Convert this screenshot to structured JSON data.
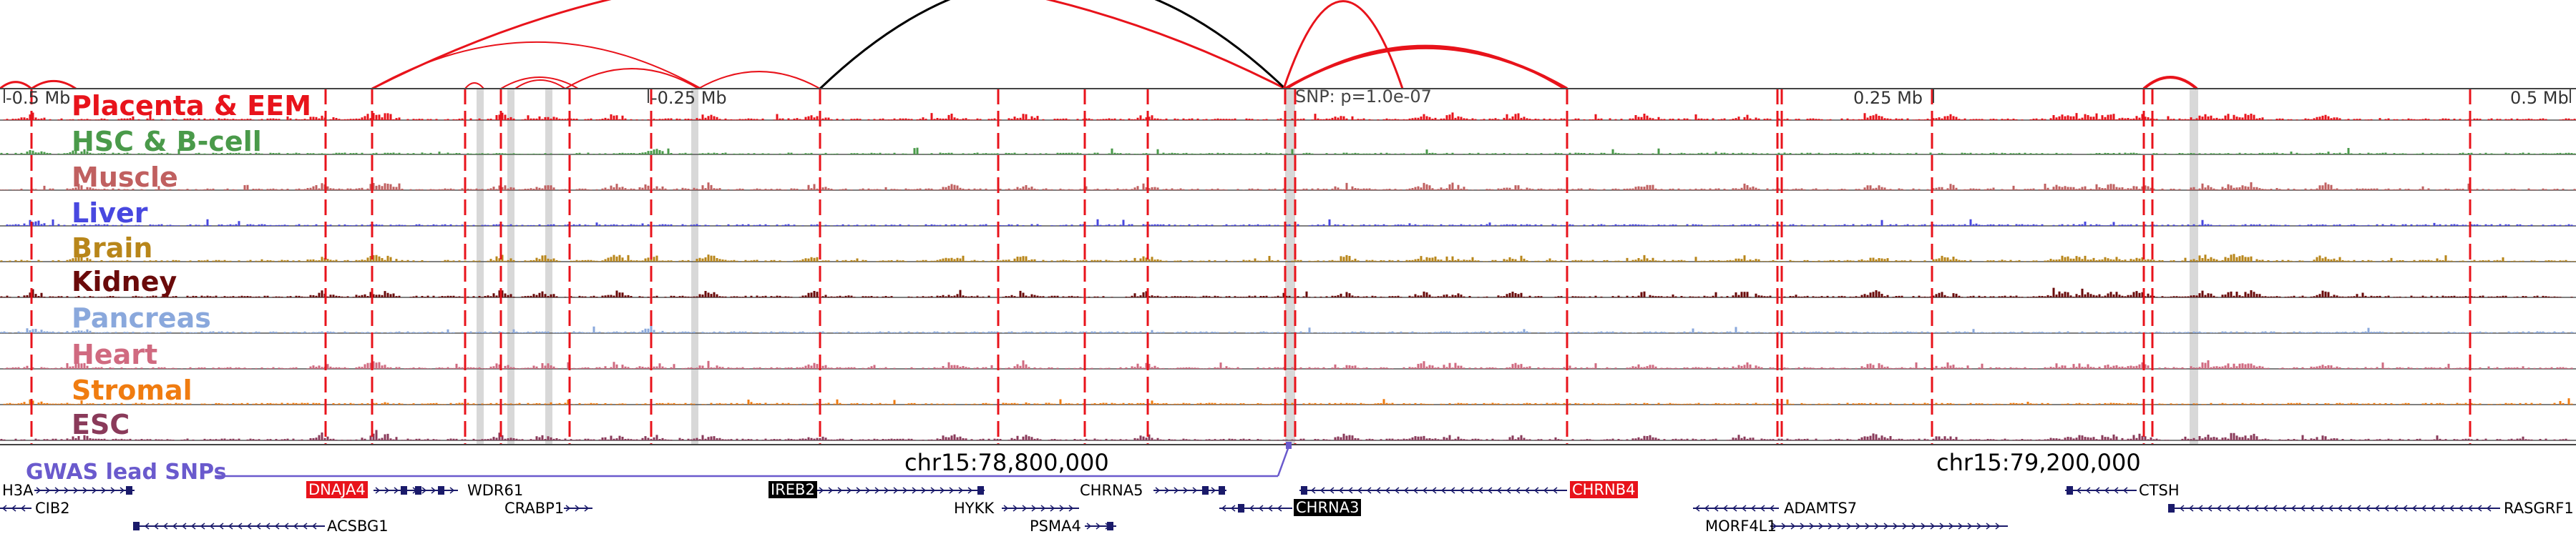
{
  "tracks": [
    {
      "label": "Placenta & EEM",
      "color": "#e8131b"
    },
    {
      "label": "HSC & B-cell",
      "color": "#4a9a4a"
    },
    {
      "label": "Muscle",
      "color": "#c06060"
    },
    {
      "label": "Liver",
      "color": "#4848e0"
    },
    {
      "label": "Brain",
      "color": "#b8861a"
    },
    {
      "label": "Kidney",
      "color": "#6a0a0a"
    },
    {
      "label": "Pancreas",
      "color": "#8aa8dc"
    },
    {
      "label": "Heart",
      "color": "#d06a80"
    },
    {
      "label": "Stromal",
      "color": "#f07c10"
    },
    {
      "label": "ESC",
      "color": "#8a3a5a"
    }
  ],
  "position_labels": [
    "-0.5 Mb",
    "-0.25 Mb",
    "0.25 Mb",
    "0.5 Mb"
  ],
  "snp_annotation": "SNP: p=1.0e-07",
  "coordinates": [
    "chr15:78,800,000",
    "chr15:79,200,000"
  ],
  "gwas_label": "GWAS lead SNPs",
  "genes": [
    {
      "name": "H3A",
      "highlight": "none"
    },
    {
      "name": "CIB2",
      "highlight": "none"
    },
    {
      "name": "DNAJA4",
      "highlight": "red"
    },
    {
      "name": "WDR61",
      "highlight": "none"
    },
    {
      "name": "CRABP1",
      "highlight": "none"
    },
    {
      "name": "ACSBG1",
      "highlight": "none"
    },
    {
      "name": "IREB2",
      "highlight": "black"
    },
    {
      "name": "HYKK",
      "highlight": "none"
    },
    {
      "name": "PSMA4",
      "highlight": "none"
    },
    {
      "name": "CHRNA5",
      "highlight": "none"
    },
    {
      "name": "CHRNA3",
      "highlight": "black"
    },
    {
      "name": "CHRNB4",
      "highlight": "red"
    },
    {
      "name": "ADAMTS7",
      "highlight": "none"
    },
    {
      "name": "MORF4L1",
      "highlight": "none"
    },
    {
      "name": "CTSH",
      "highlight": "none"
    },
    {
      "name": "RASGRF1",
      "highlight": "none"
    }
  ],
  "colors": {
    "loop_default": "#e8131b",
    "loop_highlight": "#000000",
    "gwas_line": "#6a5acd",
    "gene_body": "#1a1a6a",
    "gene_highlight_red": "#e8131b",
    "gene_highlight_black": "#000000",
    "dashed_line": "#e8131b",
    "grey_band": "#d8d8d8"
  }
}
